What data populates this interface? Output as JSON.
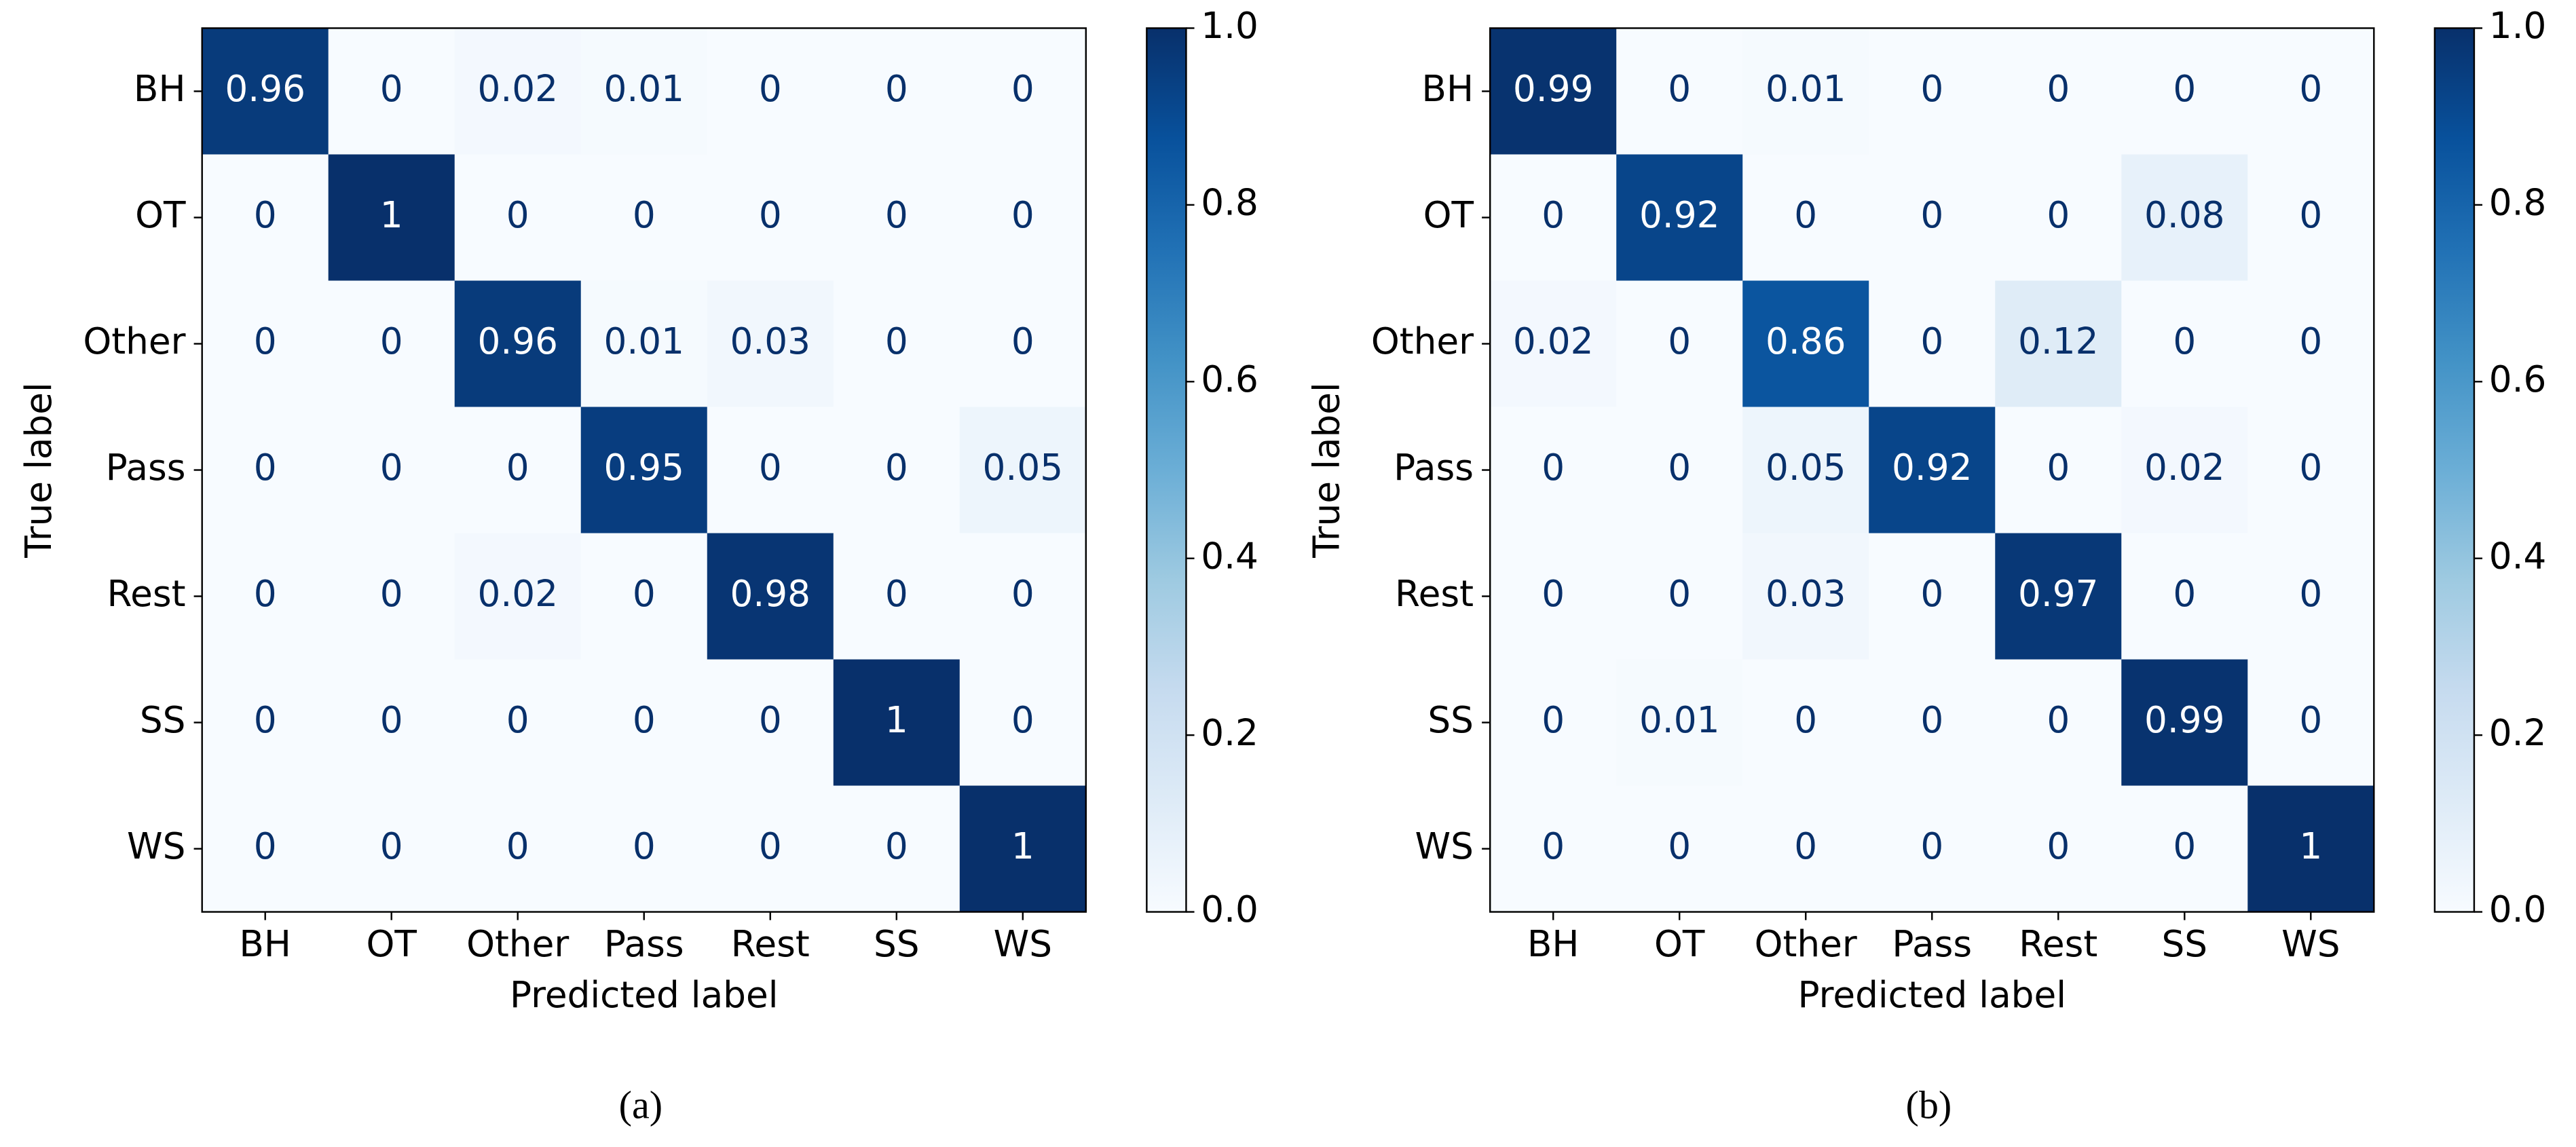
{
  "chart_data": [
    {
      "type": "heatmap",
      "caption": "(a)",
      "xlabel": "Predicted label",
      "ylabel": "True label",
      "x": [
        "BH",
        "OT",
        "Other",
        "Pass",
        "Rest",
        "SS",
        "WS"
      ],
      "y": [
        "BH",
        "OT",
        "Other",
        "Pass",
        "Rest",
        "SS",
        "WS"
      ],
      "values": [
        [
          0.96,
          0,
          0.02,
          0.01,
          0,
          0,
          0
        ],
        [
          0,
          1,
          0,
          0,
          0,
          0,
          0
        ],
        [
          0,
          0,
          0.96,
          0.01,
          0.03,
          0,
          0
        ],
        [
          0,
          0,
          0,
          0.95,
          0,
          0,
          0.05
        ],
        [
          0,
          0,
          0.02,
          0,
          0.98,
          0,
          0
        ],
        [
          0,
          0,
          0,
          0,
          0,
          1,
          0
        ],
        [
          0,
          0,
          0,
          0,
          0,
          0,
          1
        ]
      ],
      "colormap": "Blues",
      "zlim": [
        0,
        1
      ],
      "zticks": [
        {
          "value": 0,
          "label": "0.0"
        },
        0.2,
        0.4,
        0.6,
        0.8,
        {
          "value": 1,
          "label": "1.0"
        }
      ]
    },
    {
      "type": "heatmap",
      "caption": "(b)",
      "xlabel": "Predicted label",
      "ylabel": "True label",
      "x": [
        "BH",
        "OT",
        "Other",
        "Pass",
        "Rest",
        "SS",
        "WS"
      ],
      "y": [
        "BH",
        "OT",
        "Other",
        "Pass",
        "Rest",
        "SS",
        "WS"
      ],
      "values": [
        [
          0.99,
          0,
          0.01,
          0,
          0,
          0,
          0
        ],
        [
          0,
          0.92,
          0,
          0,
          0,
          0.08,
          0
        ],
        [
          0.02,
          0,
          0.86,
          0,
          0.12,
          0,
          0
        ],
        [
          0,
          0,
          0.05,
          0.92,
          0,
          0.02,
          0
        ],
        [
          0,
          0,
          0.03,
          0,
          0.97,
          0,
          0
        ],
        [
          0,
          0.01,
          0,
          0,
          0,
          0.99,
          0
        ],
        [
          0,
          0,
          0,
          0,
          0,
          0,
          1
        ]
      ],
      "colormap": "Blues",
      "zlim": [
        0,
        1
      ],
      "zticks": [
        {
          "value": 0,
          "label": "0.0"
        },
        0.2,
        0.4,
        0.6,
        0.8,
        {
          "value": 1,
          "label": "1.0"
        }
      ]
    }
  ]
}
